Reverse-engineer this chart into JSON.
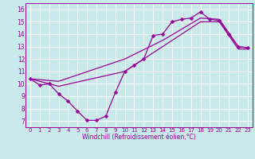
{
  "xlabel": "Windchill (Refroidissement éolien,°C)",
  "bg_color": "#c8eaea",
  "line_color": "#990099",
  "grid_color": "#ffffff",
  "spine_color": "#990099",
  "xlim": [
    -0.5,
    23.5
  ],
  "ylim": [
    6.5,
    16.5
  ],
  "xticks": [
    0,
    1,
    2,
    3,
    4,
    5,
    6,
    7,
    8,
    9,
    10,
    11,
    12,
    13,
    14,
    15,
    16,
    17,
    18,
    19,
    20,
    21,
    22,
    23
  ],
  "yticks": [
    7,
    8,
    9,
    10,
    11,
    12,
    13,
    14,
    15,
    16
  ],
  "zigzag_x": [
    0,
    1,
    2,
    3,
    4,
    5,
    6,
    7,
    8,
    9,
    10,
    11,
    12,
    13,
    14,
    15,
    16,
    17,
    18,
    19,
    20,
    21,
    22,
    23
  ],
  "zigzag_y": [
    10.4,
    9.9,
    10.0,
    9.2,
    8.6,
    7.8,
    7.05,
    7.05,
    7.4,
    9.3,
    11.0,
    11.5,
    12.0,
    13.9,
    14.0,
    15.0,
    15.2,
    15.3,
    15.8,
    15.2,
    15.1,
    14.0,
    13.0,
    12.9
  ],
  "upper_x": [
    0,
    3,
    10,
    14,
    18,
    20,
    22,
    23
  ],
  "upper_y": [
    10.4,
    10.2,
    12.0,
    13.5,
    15.3,
    15.2,
    13.0,
    12.9
  ],
  "lower_x": [
    0,
    3,
    10,
    14,
    18,
    20,
    22,
    23
  ],
  "lower_y": [
    10.4,
    9.8,
    11.0,
    13.0,
    15.0,
    15.0,
    12.8,
    12.8
  ],
  "marker_size": 2.5,
  "line_width": 0.9,
  "tick_fontsize": 5,
  "xlabel_fontsize": 5.5
}
